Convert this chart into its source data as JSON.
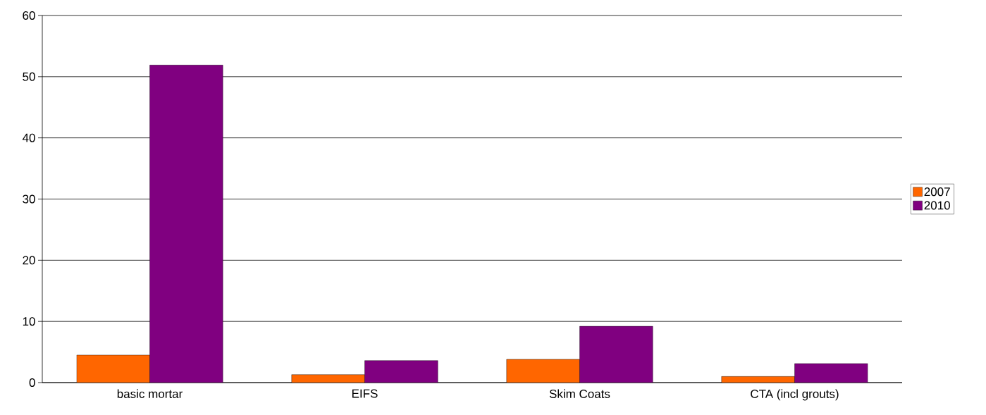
{
  "chart_data": {
    "type": "bar",
    "categories": [
      "basic mortar",
      "EIFS",
      "Skim Coats",
      "CTA (incl grouts)"
    ],
    "series": [
      {
        "name": "2007",
        "color": "#ff6600",
        "values": [
          4.5,
          1.3,
          3.8,
          1.0
        ]
      },
      {
        "name": "2010",
        "color": "#800080",
        "values": [
          51.9,
          3.6,
          9.2,
          3.1
        ]
      }
    ],
    "ylim": [
      0,
      60
    ],
    "yticks": [
      0,
      10,
      20,
      30,
      40,
      50,
      60
    ],
    "grid": "y",
    "legend": "right"
  }
}
